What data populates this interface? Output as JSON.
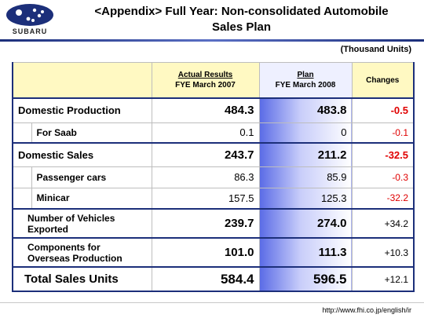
{
  "header": {
    "logo_text": "SUBARU",
    "title_line1": "<Appendix> Full Year: Non-consolidated Automobile",
    "title_line2": "Sales Plan"
  },
  "units": "(Thousand Units)",
  "table": {
    "columns": {
      "actual_line1": "Actual Results",
      "actual_line2": "FYE March 2007",
      "plan_line1": "Plan",
      "plan_line2": "FYE March 2008",
      "changes": "Changes"
    },
    "rows": [
      {
        "label": "Domestic Production",
        "actual": "484.3",
        "plan": "483.8",
        "change": "-0.5"
      },
      {
        "label": "For Saab",
        "actual": "0.1",
        "plan": "0",
        "change": "-0.1"
      },
      {
        "label": "Domestic Sales",
        "actual": "243.7",
        "plan": "211.2",
        "change": "-32.5"
      },
      {
        "label": "Passenger cars",
        "actual": "86.3",
        "plan": "85.9",
        "change": "-0.3"
      },
      {
        "label": "Minicar",
        "actual": "157.5",
        "plan": "125.3",
        "change": "-32.2"
      },
      {
        "label_line1": "Number of Vehicles",
        "label_line2": "Exported",
        "actual": "239.7",
        "plan": "274.0",
        "change": "+34.2"
      },
      {
        "label_line1": "Components for",
        "label_line2": "Overseas Production",
        "actual": "101.0",
        "plan": "111.3",
        "change": "+10.3"
      },
      {
        "label": "Total Sales Units",
        "actual": "584.4",
        "plan": "596.5",
        "change": "+12.1"
      }
    ]
  },
  "footer": {
    "url": "http://www.fhi.co.jp/english/ir"
  },
  "colors": {
    "frame": "#1c2f7a",
    "header_fill": "#fff9c2",
    "negative": "#e00000",
    "plan_gradient": "#5a6be6"
  }
}
